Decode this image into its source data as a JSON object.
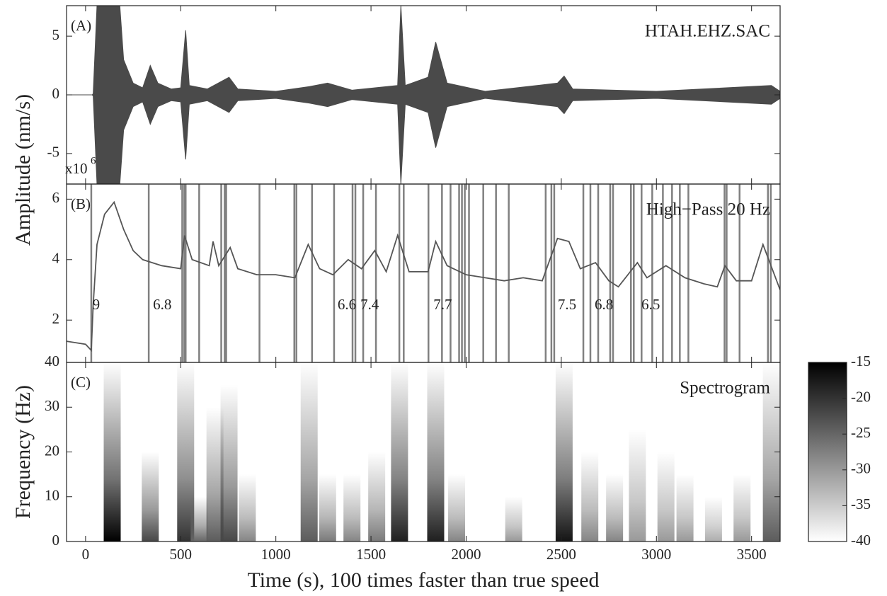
{
  "chart_data": [
    {
      "type": "area",
      "panel_label": "(A)",
      "title": "HTAH.EHZ.SAC",
      "ylabel": "Amplitude (nm/s)",
      "y_scale_label": "x10",
      "y_scale_exponent": 6,
      "color": "#4a4a4a",
      "xlim": [
        -100,
        3650
      ],
      "xticks": [
        0,
        500,
        1000,
        1500,
        2000,
        2500,
        3000,
        3500
      ],
      "ylim": [
        -7.6,
        7.6
      ],
      "yticks": [
        -5,
        0,
        5
      ],
      "x": [
        -100,
        35,
        40,
        60,
        180,
        200,
        250,
        300,
        340,
        380,
        450,
        500,
        526,
        545,
        640,
        754,
        800,
        1000,
        1175,
        1272,
        1400,
        1640,
        1657,
        1680,
        1800,
        1840,
        1900,
        2100,
        2480,
        2515,
        2560,
        3000,
        3604,
        3650
      ],
      "values": [
        0,
        0,
        0.1,
        7.6,
        7.6,
        3,
        1,
        0.6,
        2.5,
        1,
        0.5,
        0.6,
        5.5,
        0.8,
        0.5,
        1.5,
        0.5,
        0.3,
        0.7,
        1,
        0.4,
        0.8,
        7.6,
        0.8,
        1.5,
        4.5,
        1,
        0.3,
        1,
        1.6,
        0.5,
        0.3,
        0.8,
        0.3
      ]
    },
    {
      "type": "line",
      "panel_label": "(B)",
      "title": "High−Pass 20 Hz",
      "color": "#555555",
      "xlim": [
        -100,
        3650
      ],
      "xticks": [
        0,
        500,
        1000,
        1500,
        2000,
        2500,
        3000,
        3500
      ],
      "ylim": [
        0.6,
        6.5
      ],
      "yticks": [
        2,
        4,
        6
      ],
      "x": [
        -100,
        0,
        30,
        40,
        60,
        100,
        150,
        200,
        250,
        300,
        400,
        500,
        520,
        560,
        650,
        670,
        700,
        760,
        800,
        900,
        1000,
        1100,
        1170,
        1230,
        1300,
        1380,
        1450,
        1520,
        1580,
        1640,
        1700,
        1800,
        1840,
        1900,
        2000,
        2100,
        2200,
        2300,
        2400,
        2480,
        2540,
        2600,
        2680,
        2750,
        2800,
        2900,
        2950,
        3050,
        3150,
        3250,
        3320,
        3360,
        3420,
        3500,
        3560,
        3650
      ],
      "values": [
        1.3,
        1.2,
        1.0,
        2.5,
        4.5,
        5.5,
        5.9,
        5.0,
        4.3,
        4.0,
        3.8,
        3.7,
        4.8,
        4.0,
        3.8,
        4.6,
        3.8,
        4.4,
        3.7,
        3.5,
        3.5,
        3.4,
        4.5,
        3.7,
        3.5,
        4.0,
        3.7,
        4.3,
        3.6,
        4.8,
        3.6,
        3.6,
        4.6,
        3.8,
        3.5,
        3.4,
        3.3,
        3.4,
        3.3,
        4.7,
        4.6,
        3.7,
        3.9,
        3.3,
        3.1,
        3.9,
        3.4,
        3.8,
        3.4,
        3.2,
        3.1,
        3.8,
        3.3,
        3.3,
        4.5,
        3.0
      ],
      "detections": [
        30,
        332,
        508,
        519,
        526,
        597,
        713,
        731,
        739,
        914,
        1097,
        1108,
        1190,
        1306,
        1403,
        1418,
        1459,
        1526,
        1649,
        1672,
        1802,
        1873,
        1918,
        1963,
        1978,
        1993,
        2015,
        2090,
        2157,
        2224,
        2418,
        2448,
        2463,
        2616,
        2653,
        2694,
        2757,
        2772,
        2866,
        2881,
        2922,
        2978,
        3034,
        3082,
        3123,
        3168,
        3358,
        3369,
        3437,
        3586,
        3601
      ],
      "detection_color": "#808080",
      "event_times": [
        56,
        403,
        1373,
        1493,
        1877,
        2530,
        2724,
        2970
      ],
      "event_magnitudes": [
        9,
        6.8,
        6.6,
        7.4,
        7.7,
        7.5,
        6.8,
        6.5
      ]
    },
    {
      "type": "spectrogram",
      "panel_label": "(C)",
      "title": "Spectrogram",
      "ylabel": "Frequency (Hz)",
      "xlabel": "Time (s), 100 times faster than true speed",
      "xlim": [
        -100,
        3650
      ],
      "xticks": [
        0,
        500,
        1000,
        1500,
        2000,
        2500,
        3000,
        3500
      ],
      "ylim": [
        0,
        40
      ],
      "yticks": [
        0,
        10,
        20,
        30,
        40
      ],
      "clim": [
        -40,
        -15
      ],
      "cticks": [
        -40,
        -35,
        -30,
        -25,
        -20,
        -15
      ],
      "burst_times": [
        140,
        340,
        526,
        597,
        680,
        754,
        850,
        1175,
        1272,
        1400,
        1530,
        1650,
        1840,
        1950,
        2250,
        2515,
        2650,
        2780,
        2900,
        3050,
        3150,
        3300,
        3450,
        3604
      ],
      "burst_fmax": [
        40,
        20,
        40,
        10,
        30,
        35,
        15,
        40,
        15,
        15,
        20,
        40,
        40,
        15,
        10,
        40,
        20,
        15,
        25,
        20,
        15,
        10,
        15,
        40
      ],
      "burst_db": [
        -15,
        -22,
        -20,
        -25,
        -24,
        -22,
        -28,
        -24,
        -27,
        -28,
        -27,
        -18,
        -18,
        -28,
        -30,
        -17,
        -28,
        -28,
        -30,
        -30,
        -30,
        -32,
        -30,
        -24
      ]
    }
  ]
}
